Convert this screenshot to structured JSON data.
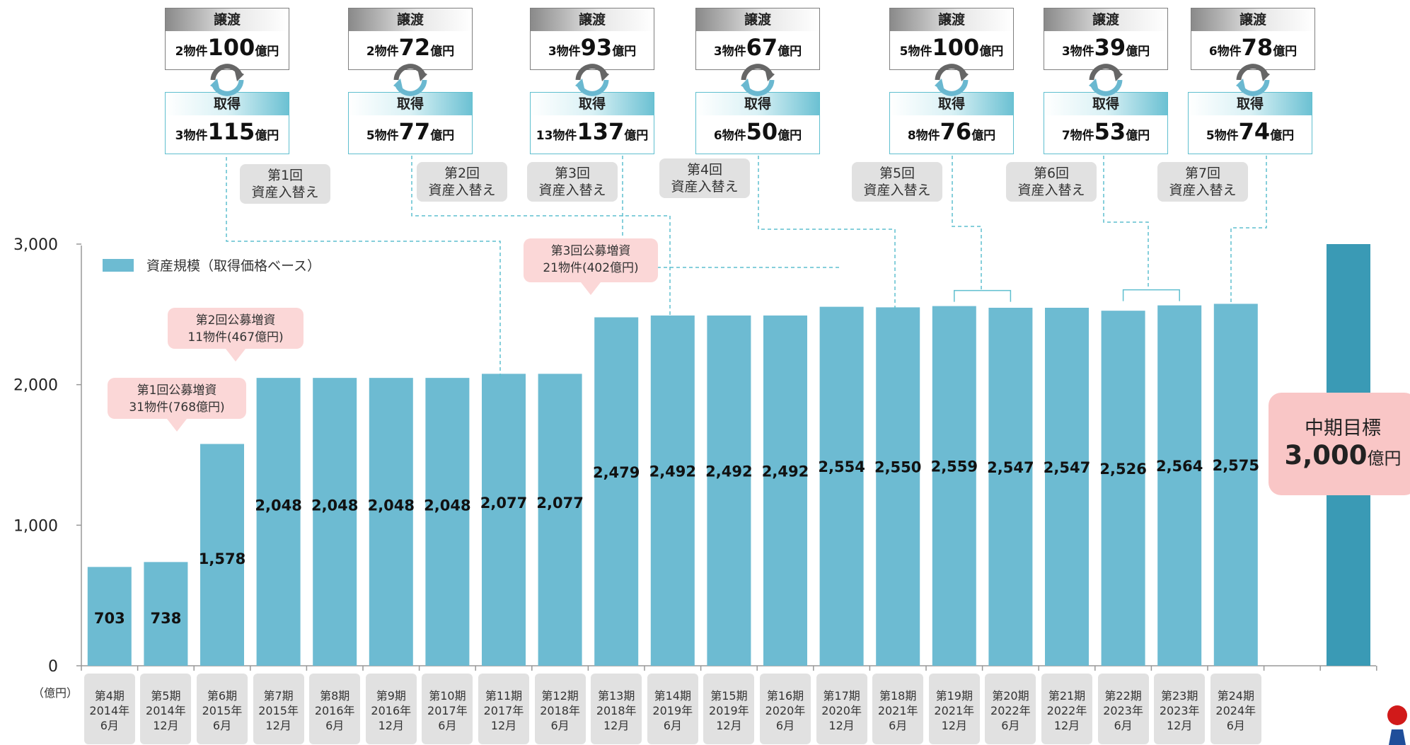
{
  "chart_data": {
    "type": "bar",
    "series": [
      {
        "name": "資産規模（取得価格ベース）",
        "values": [
          703,
          738,
          1578,
          2048,
          2048,
          2048,
          2048,
          2077,
          2077,
          2479,
          2492,
          2492,
          2492,
          2554,
          2550,
          2559,
          2547,
          2547,
          2526,
          2564,
          2575
        ]
      }
    ],
    "categories": [
      {
        "period": "第4期",
        "year": "2014年",
        "month": "6月"
      },
      {
        "period": "第5期",
        "year": "2014年",
        "month": "12月"
      },
      {
        "period": "第6期",
        "year": "2015年",
        "month": "6月"
      },
      {
        "period": "第7期",
        "year": "2015年",
        "month": "12月"
      },
      {
        "period": "第8期",
        "year": "2016年",
        "month": "6月"
      },
      {
        "period": "第9期",
        "year": "2016年",
        "month": "12月"
      },
      {
        "period": "第10期",
        "year": "2017年",
        "month": "6月"
      },
      {
        "period": "第11期",
        "year": "2017年",
        "month": "12月"
      },
      {
        "period": "第12期",
        "year": "2018年",
        "month": "6月"
      },
      {
        "period": "第13期",
        "year": "2018年",
        "month": "12月"
      },
      {
        "period": "第14期",
        "year": "2019年",
        "month": "6月"
      },
      {
        "period": "第15期",
        "year": "2019年",
        "month": "12月"
      },
      {
        "period": "第16期",
        "year": "2020年",
        "month": "6月"
      },
      {
        "period": "第17期",
        "year": "2020年",
        "month": "12月"
      },
      {
        "period": "第18期",
        "year": "2021年",
        "month": "6月"
      },
      {
        "period": "第19期",
        "year": "2021年",
        "month": "12月"
      },
      {
        "period": "第20期",
        "year": "2022年",
        "month": "6月"
      },
      {
        "period": "第21期",
        "year": "2022年",
        "month": "12月"
      },
      {
        "period": "第22期",
        "year": "2023年",
        "month": "6月"
      },
      {
        "period": "第23期",
        "year": "2023年",
        "month": "12月"
      },
      {
        "period": "第24期",
        "year": "2024年",
        "month": "6月"
      }
    ],
    "data_labels": [
      "703",
      "738",
      "1,578",
      "2,048",
      "2,048",
      "2,048",
      "2,048",
      "2,077",
      "2,077",
      "2,479",
      "2,492",
      "2,492",
      "2,492",
      "2,554",
      "2,550",
      "2,559",
      "2,547",
      "2,547",
      "2,526",
      "2,564",
      "2,575"
    ],
    "target_value": 3000,
    "ylim": [
      0,
      3000
    ],
    "yticks": [
      0,
      1000,
      2000,
      3000
    ],
    "ytick_labels": [
      "0",
      "1,000",
      "2,000",
      "3,000"
    ],
    "ylabel": "（億円）",
    "legend": "資産規模（取得価格ベース）",
    "bar_color": "#6dbbd2",
    "target_color": "#3a9ab5"
  },
  "offerings": [
    {
      "title": "第1回公募増資",
      "detail": "31物件(768億円)"
    },
    {
      "title": "第2回公募増資",
      "detail": "11物件(467億円)"
    },
    {
      "title": "第3回公募増資",
      "detail": "21物件(402億円)"
    }
  ],
  "target": {
    "title": "中期目標",
    "value": "3,000",
    "unit": "億円"
  },
  "replacements": [
    {
      "round": "第1回",
      "label": "資産入替え",
      "transfer_count": "2物件",
      "transfer_amount": "100",
      "acquire_count": "3物件",
      "acquire_amount": "115"
    },
    {
      "round": "第2回",
      "label": "資産入替え",
      "transfer_count": "2物件",
      "transfer_amount": "72",
      "acquire_count": "5物件",
      "acquire_amount": "77"
    },
    {
      "round": "第3回",
      "label": "資産入替え",
      "transfer_count": "3物件",
      "transfer_amount": "93",
      "acquire_count": "13物件",
      "acquire_amount": "137"
    },
    {
      "round": "第4回",
      "label": "資産入替え",
      "transfer_count": "3物件",
      "transfer_amount": "67",
      "acquire_count": "6物件",
      "acquire_amount": "50"
    },
    {
      "round": "第5回",
      "label": "資産入替え",
      "transfer_count": "5物件",
      "transfer_amount": "100",
      "acquire_count": "8物件",
      "acquire_amount": "76"
    },
    {
      "round": "第6回",
      "label": "資産入替え",
      "transfer_count": "3物件",
      "transfer_amount": "39",
      "acquire_count": "7物件",
      "acquire_amount": "53"
    },
    {
      "round": "第7回",
      "label": "資産入替え",
      "transfer_count": "6物件",
      "transfer_amount": "78",
      "acquire_count": "5物件",
      "acquire_amount": "74"
    }
  ],
  "labels": {
    "transfer": "譲渡",
    "acquire": "取得",
    "unit": "億円"
  }
}
